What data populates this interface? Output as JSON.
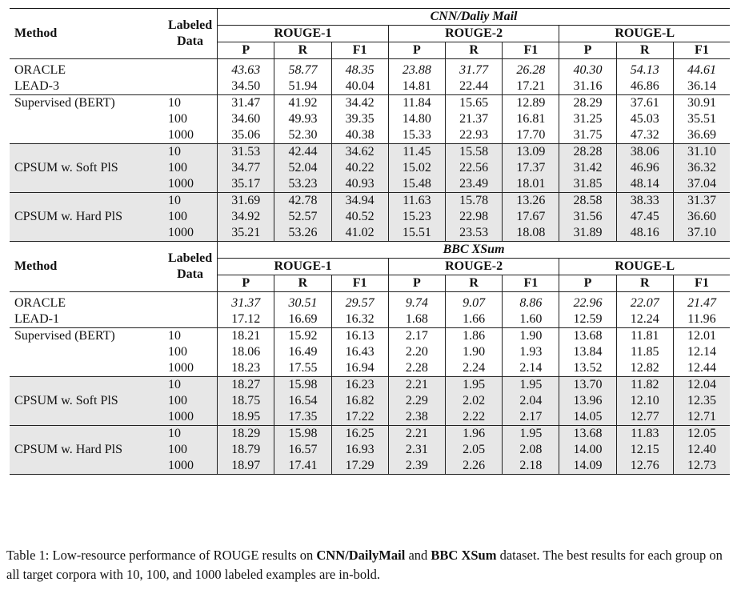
{
  "headers": {
    "method": "Method",
    "labeled_data": "Labeled\nData",
    "metrics": [
      "ROUGE-1",
      "ROUGE-2",
      "ROUGE-L"
    ],
    "sub": [
      "P",
      "R",
      "F1"
    ]
  },
  "datasets": [
    {
      "name": "CNN/Daliy Mail",
      "ref_rows": [
        {
          "name": "ORACLE",
          "values": [
            "43.63",
            "58.77",
            "48.35",
            "23.88",
            "31.77",
            "26.28",
            "40.30",
            "54.13",
            "44.61"
          ]
        },
        {
          "name": "LEAD-3",
          "values": [
            "34.50",
            "51.94",
            "40.04",
            "14.81",
            "22.44",
            "17.21",
            "31.16",
            "46.86",
            "36.14"
          ]
        }
      ],
      "groups": [
        {
          "name": "Supervised (BERT)",
          "shaded": false,
          "rows": [
            {
              "labeled": "10",
              "values": [
                "31.47",
                "41.92",
                "34.42",
                "11.84",
                "15.65",
                "12.89",
                "28.29",
                "37.61",
                "30.91"
              ]
            },
            {
              "labeled": "100",
              "values": [
                "34.60",
                "49.93",
                "39.35",
                "14.80",
                "21.37",
                "16.81",
                "31.25",
                "45.03",
                "35.51"
              ]
            },
            {
              "labeled": "1000",
              "values": [
                "35.06",
                "52.30",
                "40.38",
                "15.33",
                "22.93",
                "17.70",
                "31.75",
                "47.32",
                "36.69"
              ]
            }
          ]
        },
        {
          "name": "CPSUM w. Soft PlS",
          "shaded": true,
          "rows": [
            {
              "labeled": "10",
              "values": [
                "31.53",
                "42.44",
                "34.62",
                "11.45",
                "15.58",
                "13.09",
                "28.28",
                "38.06",
                "31.10"
              ]
            },
            {
              "labeled": "100",
              "values": [
                "34.77",
                "52.04",
                "40.22",
                "15.02",
                "22.56",
                "17.37",
                "31.42",
                "46.96",
                "36.32"
              ]
            },
            {
              "labeled": "1000",
              "values": [
                "35.17",
                "53.23",
                "40.93",
                "15.48",
                "23.49",
                "18.01",
                "31.85",
                "48.14",
                "37.04"
              ]
            }
          ]
        },
        {
          "name": "CPSUM w. Hard PlS",
          "shaded": true,
          "rows": [
            {
              "labeled": "10",
              "values": [
                "31.69",
                "42.78",
                "34.94",
                "11.63",
                "15.78",
                "13.26",
                "28.58",
                "38.33",
                "31.37"
              ]
            },
            {
              "labeled": "100",
              "values": [
                "34.92",
                "52.57",
                "40.52",
                "15.23",
                "22.98",
                "17.67",
                "31.56",
                "47.45",
                "36.60"
              ]
            },
            {
              "labeled": "1000",
              "values": [
                "35.21",
                "53.26",
                "41.02",
                "15.51",
                "23.53",
                "18.08",
                "31.89",
                "48.16",
                "37.10"
              ]
            }
          ]
        }
      ]
    },
    {
      "name": "BBC XSum",
      "ref_rows": [
        {
          "name": "ORACLE",
          "values": [
            "31.37",
            "30.51",
            "29.57",
            "9.74",
            "9.07",
            "8.86",
            "22.96",
            "22.07",
            "21.47"
          ]
        },
        {
          "name": "LEAD-1",
          "values": [
            "17.12",
            "16.69",
            "16.32",
            "1.68",
            "1.66",
            "1.60",
            "12.59",
            "12.24",
            "11.96"
          ]
        }
      ],
      "groups": [
        {
          "name": "Supervised (BERT)",
          "shaded": false,
          "rows": [
            {
              "labeled": "10",
              "values": [
                "18.21",
                "15.92",
                "16.13",
                "2.17",
                "1.86",
                "1.90",
                "13.68",
                "11.81",
                "12.01"
              ]
            },
            {
              "labeled": "100",
              "values": [
                "18.06",
                "16.49",
                "16.43",
                "2.20",
                "1.90",
                "1.93",
                "13.84",
                "11.85",
                "12.14"
              ]
            },
            {
              "labeled": "1000",
              "values": [
                "18.23",
                "17.55",
                "16.94",
                "2.28",
                "2.24",
                "2.14",
                "13.52",
                "12.82",
                "12.44"
              ]
            }
          ]
        },
        {
          "name": "CPSUM w. Soft PlS",
          "shaded": true,
          "rows": [
            {
              "labeled": "10",
              "values": [
                "18.27",
                "15.98",
                "16.23",
                "2.21",
                "1.95",
                "1.95",
                "13.70",
                "11.82",
                "12.04"
              ]
            },
            {
              "labeled": "100",
              "values": [
                "18.75",
                "16.54",
                "16.82",
                "2.29",
                "2.02",
                "2.04",
                "13.96",
                "12.10",
                "12.35"
              ]
            },
            {
              "labeled": "1000",
              "values": [
                "18.95",
                "17.35",
                "17.22",
                "2.38",
                "2.22",
                "2.17",
                "14.05",
                "12.77",
                "12.71"
              ]
            }
          ]
        },
        {
          "name": "CPSUM w. Hard PlS",
          "shaded": true,
          "rows": [
            {
              "labeled": "10",
              "values": [
                "18.29",
                "15.98",
                "16.25",
                "2.21",
                "1.96",
                "1.95",
                "13.68",
                "11.83",
                "12.05"
              ]
            },
            {
              "labeled": "100",
              "values": [
                "18.79",
                "16.57",
                "16.93",
                "2.31",
                "2.05",
                "2.08",
                "14.00",
                "12.15",
                "12.40"
              ]
            },
            {
              "labeled": "1000",
              "values": [
                "18.97",
                "17.41",
                "17.29",
                "2.39",
                "2.26",
                "2.18",
                "14.09",
                "12.76",
                "12.73"
              ]
            }
          ]
        }
      ]
    }
  ],
  "caption": {
    "prefix": "Table 1: Low-resource performance of ROUGE results on ",
    "ds1": "CNN/DailyMail",
    "mid": " and ",
    "ds2": "BBC XSum",
    "suffix": " dataset. The best results for each group on all target corpora with 10, 100, and 1000 labeled examples are in-bold."
  }
}
